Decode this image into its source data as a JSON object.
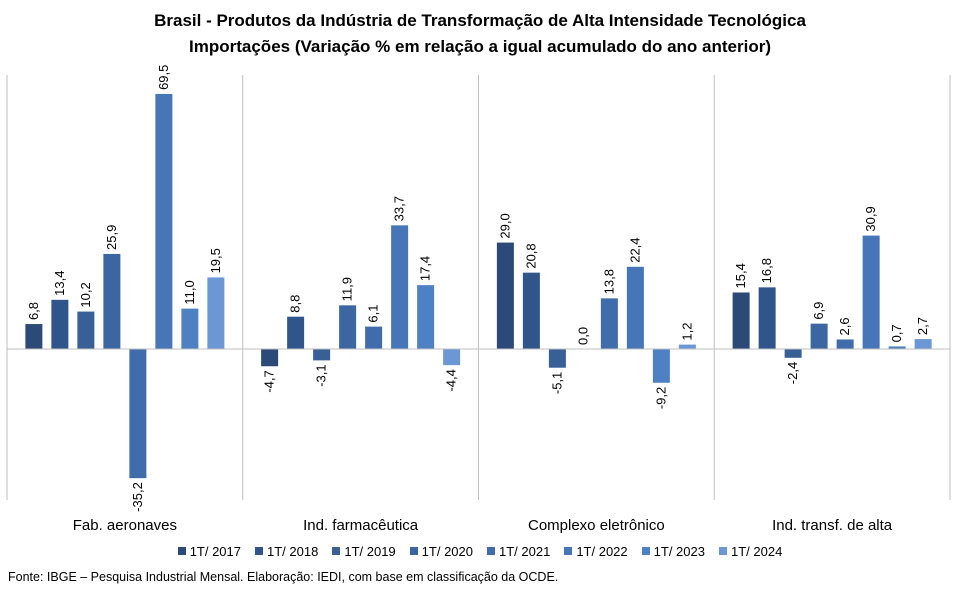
{
  "chart_data": {
    "type": "bar",
    "title": "Brasil - Produtos da Indústria de Transformação  de Alta Intensidade Tecnológica",
    "subtitle": "Importações  (Variação % em relação a igual acumulado  do ano anterior)",
    "categories": [
      "Fab. aeronaves",
      "Ind. farmacêutica",
      "Complexo eletrônico",
      "Ind. transf. de alta"
    ],
    "series": [
      {
        "name": "1T/ 2017",
        "color": "#2b4a78",
        "values": [
          6.8,
          -4.7,
          29.0,
          15.4
        ],
        "labels": [
          "6,8",
          "-4,7",
          "29,0",
          "15,4"
        ]
      },
      {
        "name": "1T/ 2018",
        "color": "#30558a",
        "values": [
          13.4,
          8.8,
          20.8,
          16.8
        ],
        "labels": [
          "13,4",
          "8,8",
          "20,8",
          "16,8"
        ]
      },
      {
        "name": "1T/ 2019",
        "color": "#385f96",
        "values": [
          10.2,
          -3.1,
          -5.1,
          -2.4
        ],
        "labels": [
          "10,2",
          "-3,1",
          "-5,1",
          "-2,4"
        ]
      },
      {
        "name": "1T/ 2020",
        "color": "#3c66a2",
        "values": [
          25.9,
          11.9,
          0.0,
          6.9
        ],
        "labels": [
          "25,9",
          "11,9",
          "0,0",
          "6,9"
        ]
      },
      {
        "name": "1T/ 2021",
        "color": "#416cab",
        "values": [
          -35.2,
          6.1,
          13.8,
          2.6
        ],
        "labels": [
          "-35,2",
          "6,1",
          "13,8",
          "2,6"
        ]
      },
      {
        "name": "1T/ 2022",
        "color": "#4675b8",
        "values": [
          69.5,
          33.7,
          22.4,
          30.9
        ],
        "labels": [
          "69,5",
          "33,7",
          "22,4",
          "30,9"
        ]
      },
      {
        "name": "1T/ 2023",
        "color": "#4e80c4",
        "values": [
          11.0,
          17.4,
          -9.2,
          0.7
        ],
        "labels": [
          "11,0",
          "17,4",
          "-9,2",
          "0,7"
        ]
      },
      {
        "name": "1T/ 2024",
        "color": "#6b97d4",
        "values": [
          19.5,
          -4.4,
          1.2,
          2.7
        ],
        "labels": [
          "19,5",
          "-4,4",
          "1,2",
          "2,7"
        ]
      }
    ],
    "legend_position": "bottom",
    "grid": false,
    "source": "Fonte: IBGE – Pesquisa Industrial Mensal. Elaboração: IEDI, com base em classificação da OCDE."
  }
}
